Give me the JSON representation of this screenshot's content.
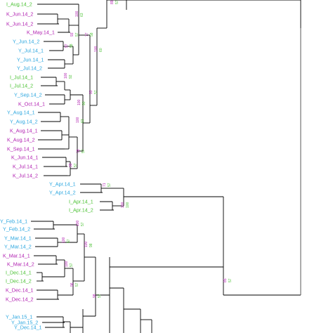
{
  "colors": {
    "Y": "#2aa6df",
    "I": "#4cc235",
    "K": "#b01eb0",
    "branch": "#000000"
  },
  "leaves": [
    {
      "label": "I_Aug.14_2",
      "site": "I"
    },
    {
      "label": "K_Jun.14_2",
      "site": "K"
    },
    {
      "label": "K_Jun.14_2",
      "site": "K"
    },
    {
      "label": "K_May.14_1",
      "site": "K"
    },
    {
      "label": "Y_Jun.14_2",
      "site": "Y"
    },
    {
      "label": "Y_Jul.14_1",
      "site": "Y"
    },
    {
      "label": "Y_Jun.14_1",
      "site": "Y"
    },
    {
      "label": "Y_Jul.14_2",
      "site": "Y"
    },
    {
      "label": "I_Jul.14_1",
      "site": "I"
    },
    {
      "label": "I_Jul.14_2",
      "site": "I"
    },
    {
      "label": "Y_Sep.14_2",
      "site": "Y"
    },
    {
      "label": "K_Oct.14_1",
      "site": "K"
    },
    {
      "label": "Y_Aug.14_1",
      "site": "Y"
    },
    {
      "label": "Y_Aug.14_2",
      "site": "Y"
    },
    {
      "label": "K_Aug.14_1",
      "site": "K"
    },
    {
      "label": "K_Aug.14_2",
      "site": "K"
    },
    {
      "label": "K_Sep.14_1",
      "site": "K"
    },
    {
      "label": "K_Jun.14_1",
      "site": "K"
    },
    {
      "label": "K_Jul.14_1",
      "site": "K"
    },
    {
      "label": "K_Jul.14_2",
      "site": "K"
    },
    {
      "label": "Y_Apr.14_1",
      "site": "Y"
    },
    {
      "label": "Y_Apr.14_2",
      "site": "Y"
    },
    {
      "label": "I_Apr.14_1",
      "site": "I"
    },
    {
      "label": "I_Apr.14_2",
      "site": "I"
    },
    {
      "label": "Y_Feb.14_1",
      "site": "Y"
    },
    {
      "label": "Y_Feb.14_2",
      "site": "Y"
    },
    {
      "label": "Y_Mar.14_1",
      "site": "Y"
    },
    {
      "label": "Y_Mar.14_2",
      "site": "Y"
    },
    {
      "label": "K_Mar.14_1",
      "site": "K"
    },
    {
      "label": "K_Mar.14_2",
      "site": "K"
    },
    {
      "label": "I_Dec.14_1",
      "site": "I"
    },
    {
      "label": "I_Dec.14_2",
      "site": "I"
    },
    {
      "label": "K_Dec.14_1",
      "site": "K"
    },
    {
      "label": "K_Dec.14_2",
      "site": "K"
    },
    {
      "label": "Y_Jan.15_1",
      "site": "Y"
    },
    {
      "label": "Y_Jan.15_2",
      "site": "Y"
    },
    {
      "label": "Y_Dec.14_1",
      "site": "Y"
    }
  ],
  "support_values": [
    {
      "site": "K",
      "value": "89"
    },
    {
      "site": "I",
      "value": "57"
    },
    {
      "site": "K",
      "value": "100"
    },
    {
      "site": "I",
      "value": "63"
    },
    {
      "site": "K",
      "value": "93"
    },
    {
      "site": "I",
      "value": "57"
    },
    {
      "site": "K",
      "value": "77"
    },
    {
      "site": "I",
      "value": "58"
    },
    {
      "site": "K",
      "value": "100"
    },
    {
      "site": "I",
      "value": "60"
    },
    {
      "site": "K",
      "value": "97"
    },
    {
      "site": "I",
      "value": "58"
    },
    {
      "site": "K",
      "value": "100"
    },
    {
      "site": "I",
      "value": "92"
    },
    {
      "site": "K",
      "value": "93"
    },
    {
      "site": "I",
      "value": "57"
    },
    {
      "site": "K",
      "value": "100"
    },
    {
      "site": "I",
      "value": "90"
    },
    {
      "site": "K",
      "value": "100"
    },
    {
      "site": "I",
      "value": "63"
    },
    {
      "site": "K",
      "value": "78"
    },
    {
      "site": "I",
      "value": "57"
    },
    {
      "site": "K",
      "value": "98"
    },
    {
      "site": "I",
      "value": "57"
    },
    {
      "site": "K",
      "value": "71"
    },
    {
      "site": "I",
      "value": "57"
    },
    {
      "site": "K",
      "value": "100"
    },
    {
      "site": "I",
      "value": "100"
    },
    {
      "site": "K",
      "value": "100"
    },
    {
      "site": "I",
      "value": "57"
    },
    {
      "site": "K",
      "value": "100"
    },
    {
      "site": "I",
      "value": "57"
    },
    {
      "site": "K",
      "value": "100"
    },
    {
      "site": "I",
      "value": "98"
    },
    {
      "site": "K",
      "value": "100"
    },
    {
      "site": "I",
      "value": "57"
    },
    {
      "site": "K",
      "value": "96"
    },
    {
      "site": "I",
      "value": "57"
    },
    {
      "site": "K",
      "value": "98"
    },
    {
      "site": "I",
      "value": "57"
    },
    {
      "site": "K",
      "value": "85"
    },
    {
      "site": "I",
      "value": "57"
    }
  ]
}
